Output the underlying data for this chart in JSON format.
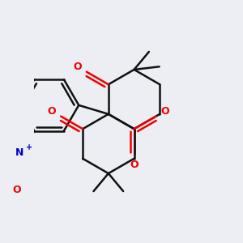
{
  "background_color": "#eceef4",
  "bond_color": "#111111",
  "oxygen_color": "#ee0000",
  "nitrogen_color": "#0000cc",
  "bond_width": 1.8,
  "figsize": [
    3.0,
    3.0
  ],
  "dpi": 100,
  "xlim": [
    -2.5,
    4.5
  ],
  "ylim": [
    -4.0,
    3.5
  ]
}
